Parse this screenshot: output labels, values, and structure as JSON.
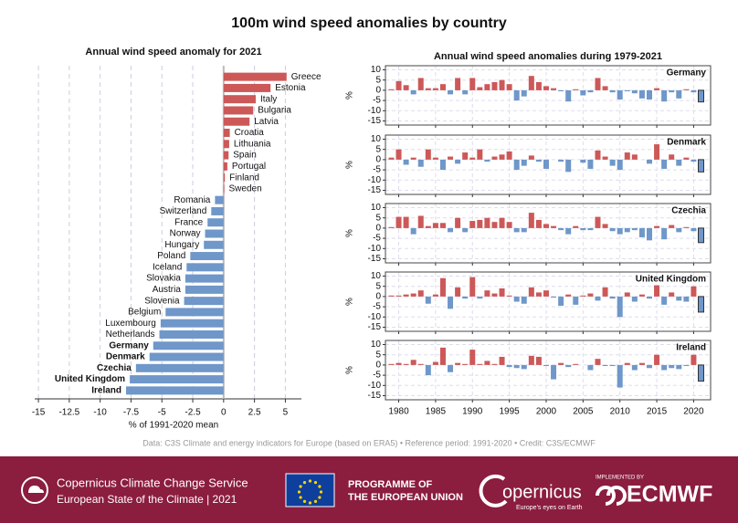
{
  "title": "100m wind speed anomalies by country",
  "panels_title": "Annual wind speed anomalies during 1979-2021",
  "credit": "Data: C3S Climate and energy indicators for Europe (based on ERA5) • Reference period: 1991-2020 • Credit: C3S/ECMWF",
  "footer": {
    "c3s_name": "Copernicus Climate Change Service",
    "report": "European State of the Climate | 2021",
    "eu_line1": "PROGRAMME OF",
    "eu_line2": "THE EUROPEAN UNION",
    "copernicus": "opernicus",
    "copernicus_tagline": "Europe's eyes on Earth",
    "implemented_by": "IMPLEMENTED BY",
    "ecmwf": "ECMWF"
  },
  "chart_data": [
    {
      "type": "hbar",
      "title": "Annual wind speed anomaly for 2021",
      "categories": [
        "Greece",
        "Estonia",
        "Italy",
        "Bulgaria",
        "Latvia",
        "Croatia",
        "Lithuania",
        "Spain",
        "Portugal",
        "Finland",
        "Sweden",
        "Romania",
        "Switzerland",
        "France",
        "Norway",
        "Hungary",
        "Poland",
        "Iceland",
        "Slovakia",
        "Austria",
        "Slovenia",
        "Belgium",
        "Luxembourg",
        "Netherlands",
        "Germany",
        "Denmark",
        "Czechia",
        "United Kingdom",
        "Ireland"
      ],
      "values": [
        5.1,
        3.8,
        2.6,
        2.4,
        2.1,
        0.5,
        0.45,
        0.4,
        0.3,
        0.1,
        0.05,
        -0.7,
        -1.0,
        -1.3,
        -1.5,
        -1.6,
        -2.7,
        -3.0,
        -3.1,
        -3.1,
        -3.2,
        -4.7,
        -5.1,
        -5.2,
        -5.7,
        -6.0,
        -7.1,
        -7.6,
        -7.9
      ],
      "bold": [
        false,
        false,
        false,
        false,
        false,
        false,
        false,
        false,
        false,
        false,
        false,
        false,
        false,
        false,
        false,
        false,
        false,
        false,
        false,
        false,
        false,
        false,
        false,
        false,
        true,
        true,
        true,
        true,
        true
      ],
      "xlim": [
        -15.3,
        6.3
      ],
      "xticks": [
        -15,
        -12.5,
        -10,
        -7.5,
        -5,
        -2.5,
        0,
        2.5,
        5
      ],
      "xlabel": "% of 1991-2020 mean",
      "grid": true,
      "colors": {
        "positive": "#cd5858",
        "negative": "#6f97c9"
      }
    },
    {
      "type": "bar",
      "title": "Germany",
      "ylabel": "%",
      "x": [
        1979,
        1980,
        1981,
        1982,
        1983,
        1984,
        1985,
        1986,
        1987,
        1988,
        1989,
        1990,
        1991,
        1992,
        1993,
        1994,
        1995,
        1996,
        1997,
        1998,
        1999,
        2000,
        2001,
        2002,
        2003,
        2004,
        2005,
        2006,
        2007,
        2008,
        2009,
        2010,
        2011,
        2012,
        2013,
        2014,
        2015,
        2016,
        2017,
        2018,
        2019,
        2020,
        2021
      ],
      "values": [
        0.5,
        4.5,
        2.5,
        -2,
        6,
        1,
        1,
        3,
        -2,
        6,
        -2,
        6,
        1.5,
        3,
        4,
        5,
        3,
        -5,
        -3,
        7,
        4,
        2,
        1,
        -0.5,
        -5.5,
        0.5,
        -2.5,
        -1,
        6,
        2,
        -1,
        -4.5,
        -0.5,
        -1.5,
        -4,
        -4.5,
        1,
        -5.5,
        -1,
        -4,
        0.5,
        -1,
        -5.7
      ],
      "xlim": [
        1978.2,
        2022.3
      ],
      "ylim": [
        -17,
        12
      ],
      "xticks": [
        1980,
        1985,
        1990,
        1995,
        2000,
        2005,
        2010,
        2015,
        2020
      ],
      "yticks": [
        -15,
        -10,
        -5,
        0,
        5,
        10
      ],
      "xtick_labels": false,
      "grid": true,
      "colors": {
        "positive": "#cd5858",
        "negative": "#6f97c9"
      }
    },
    {
      "type": "bar",
      "title": "Denmark",
      "ylabel": "%",
      "x": [
        1979,
        1980,
        1981,
        1982,
        1983,
        1984,
        1985,
        1986,
        1987,
        1988,
        1989,
        1990,
        1991,
        1992,
        1993,
        1994,
        1995,
        1996,
        1997,
        1998,
        1999,
        2000,
        2001,
        2002,
        2003,
        2004,
        2005,
        2006,
        2007,
        2008,
        2009,
        2010,
        2011,
        2012,
        2013,
        2014,
        2015,
        2016,
        2017,
        2018,
        2019,
        2020,
        2021
      ],
      "values": [
        1,
        5,
        -2.5,
        1,
        -3.5,
        5,
        1,
        -5,
        1.5,
        -2,
        3.5,
        1,
        5,
        -1,
        1.5,
        2.5,
        4,
        -5,
        -3,
        2,
        -1,
        -4.5,
        0,
        -1,
        -6,
        0,
        -1.5,
        -4.5,
        4.5,
        1.5,
        -3,
        -5,
        3.5,
        2.5,
        0,
        -2,
        7.5,
        -4.5,
        2.5,
        -3,
        1,
        -1,
        -6
      ],
      "xlim": [
        1978.2,
        2022.3
      ],
      "ylim": [
        -17,
        12
      ],
      "xticks": [
        1980,
        1985,
        1990,
        1995,
        2000,
        2005,
        2010,
        2015,
        2020
      ],
      "yticks": [
        -15,
        -10,
        -5,
        0,
        5,
        10
      ],
      "xtick_labels": false,
      "grid": true,
      "colors": {
        "positive": "#cd5858",
        "negative": "#6f97c9"
      }
    },
    {
      "type": "bar",
      "title": "Czechia",
      "ylabel": "%",
      "x": [
        1979,
        1980,
        1981,
        1982,
        1983,
        1984,
        1985,
        1986,
        1987,
        1988,
        1989,
        1990,
        1991,
        1992,
        1993,
        1994,
        1995,
        1996,
        1997,
        1998,
        1999,
        2000,
        2001,
        2002,
        2003,
        2004,
        2005,
        2006,
        2007,
        2008,
        2009,
        2010,
        2011,
        2012,
        2013,
        2014,
        2015,
        2016,
        2017,
        2018,
        2019,
        2020,
        2021
      ],
      "values": [
        0.5,
        5.5,
        5.5,
        -3,
        6,
        1,
        2.5,
        2.5,
        -2,
        5,
        -2,
        3.5,
        4,
        5,
        3,
        5,
        3,
        -2,
        -2,
        7.5,
        4,
        2,
        1,
        -1,
        -3,
        1,
        -1,
        -1,
        5.5,
        2,
        -1.5,
        -3,
        -2,
        -1,
        -4.5,
        -6,
        1,
        -5.5,
        1.5,
        -2,
        0.5,
        -1.5,
        -7.1
      ],
      "xlim": [
        1978.2,
        2022.3
      ],
      "ylim": [
        -17,
        12
      ],
      "xticks": [
        1980,
        1985,
        1990,
        1995,
        2000,
        2005,
        2010,
        2015,
        2020
      ],
      "yticks": [
        -15,
        -10,
        -5,
        0,
        5,
        10
      ],
      "xtick_labels": false,
      "grid": true,
      "colors": {
        "positive": "#cd5858",
        "negative": "#6f97c9"
      }
    },
    {
      "type": "bar",
      "title": "United Kingdom",
      "ylabel": "%",
      "x": [
        1979,
        1980,
        1981,
        1982,
        1983,
        1984,
        1985,
        1986,
        1987,
        1988,
        1989,
        1990,
        1991,
        1992,
        1993,
        1994,
        1995,
        1996,
        1997,
        1998,
        1999,
        2000,
        2001,
        2002,
        2003,
        2004,
        2005,
        2006,
        2007,
        2008,
        2009,
        2010,
        2011,
        2012,
        2013,
        2014,
        2015,
        2016,
        2017,
        2018,
        2019,
        2020,
        2021
      ],
      "values": [
        0.5,
        0.5,
        1,
        1.5,
        3,
        -3.5,
        1,
        9,
        -6,
        4.5,
        -1,
        9.5,
        -1,
        3,
        1.5,
        4,
        0.5,
        -2.5,
        -3.5,
        4.5,
        2,
        3,
        -0.5,
        -4.5,
        1,
        -4,
        0.5,
        1.5,
        -2,
        4.5,
        -1,
        -10,
        2,
        -2.5,
        1,
        -1,
        5.5,
        -4,
        2,
        -2,
        -2.5,
        5,
        -7.6
      ],
      "xlim": [
        1978.2,
        2022.3
      ],
      "ylim": [
        -17,
        12
      ],
      "xticks": [
        1980,
        1985,
        1990,
        1995,
        2000,
        2005,
        2010,
        2015,
        2020
      ],
      "yticks": [
        -15,
        -10,
        -5,
        0,
        5,
        10
      ],
      "xtick_labels": false,
      "grid": true,
      "colors": {
        "positive": "#cd5858",
        "negative": "#6f97c9"
      }
    },
    {
      "type": "bar",
      "title": "Ireland",
      "ylabel": "%",
      "x": [
        1979,
        1980,
        1981,
        1982,
        1983,
        1984,
        1985,
        1986,
        1987,
        1988,
        1989,
        1990,
        1991,
        1992,
        1993,
        1994,
        1995,
        1996,
        1997,
        1998,
        1999,
        2000,
        2001,
        2002,
        2003,
        2004,
        2005,
        2006,
        2007,
        2008,
        2009,
        2010,
        2011,
        2012,
        2013,
        2014,
        2015,
        2016,
        2017,
        2018,
        2019,
        2020,
        2021
      ],
      "values": [
        0.5,
        1,
        0.5,
        2.5,
        0.5,
        -5,
        1.5,
        8.5,
        -3.5,
        1,
        0.5,
        7.5,
        0.5,
        2,
        0.5,
        4,
        -1,
        -1.5,
        -2,
        4.5,
        4,
        -0.5,
        -7,
        1,
        -1,
        0.5,
        0,
        -2.5,
        3,
        -0.5,
        -0.5,
        -11,
        1,
        -2.5,
        1,
        -1.5,
        5,
        -2.5,
        -1.5,
        -2,
        -0.5,
        5,
        -7.9
      ],
      "xlim": [
        1978.2,
        2022.3
      ],
      "ylim": [
        -17,
        12
      ],
      "xticks": [
        1980,
        1985,
        1990,
        1995,
        2000,
        2005,
        2010,
        2015,
        2020
      ],
      "yticks": [
        -15,
        -10,
        -5,
        0,
        5,
        10
      ],
      "xtick_labels": true,
      "grid": true,
      "colors": {
        "positive": "#cd5858",
        "negative": "#6f97c9"
      }
    }
  ]
}
